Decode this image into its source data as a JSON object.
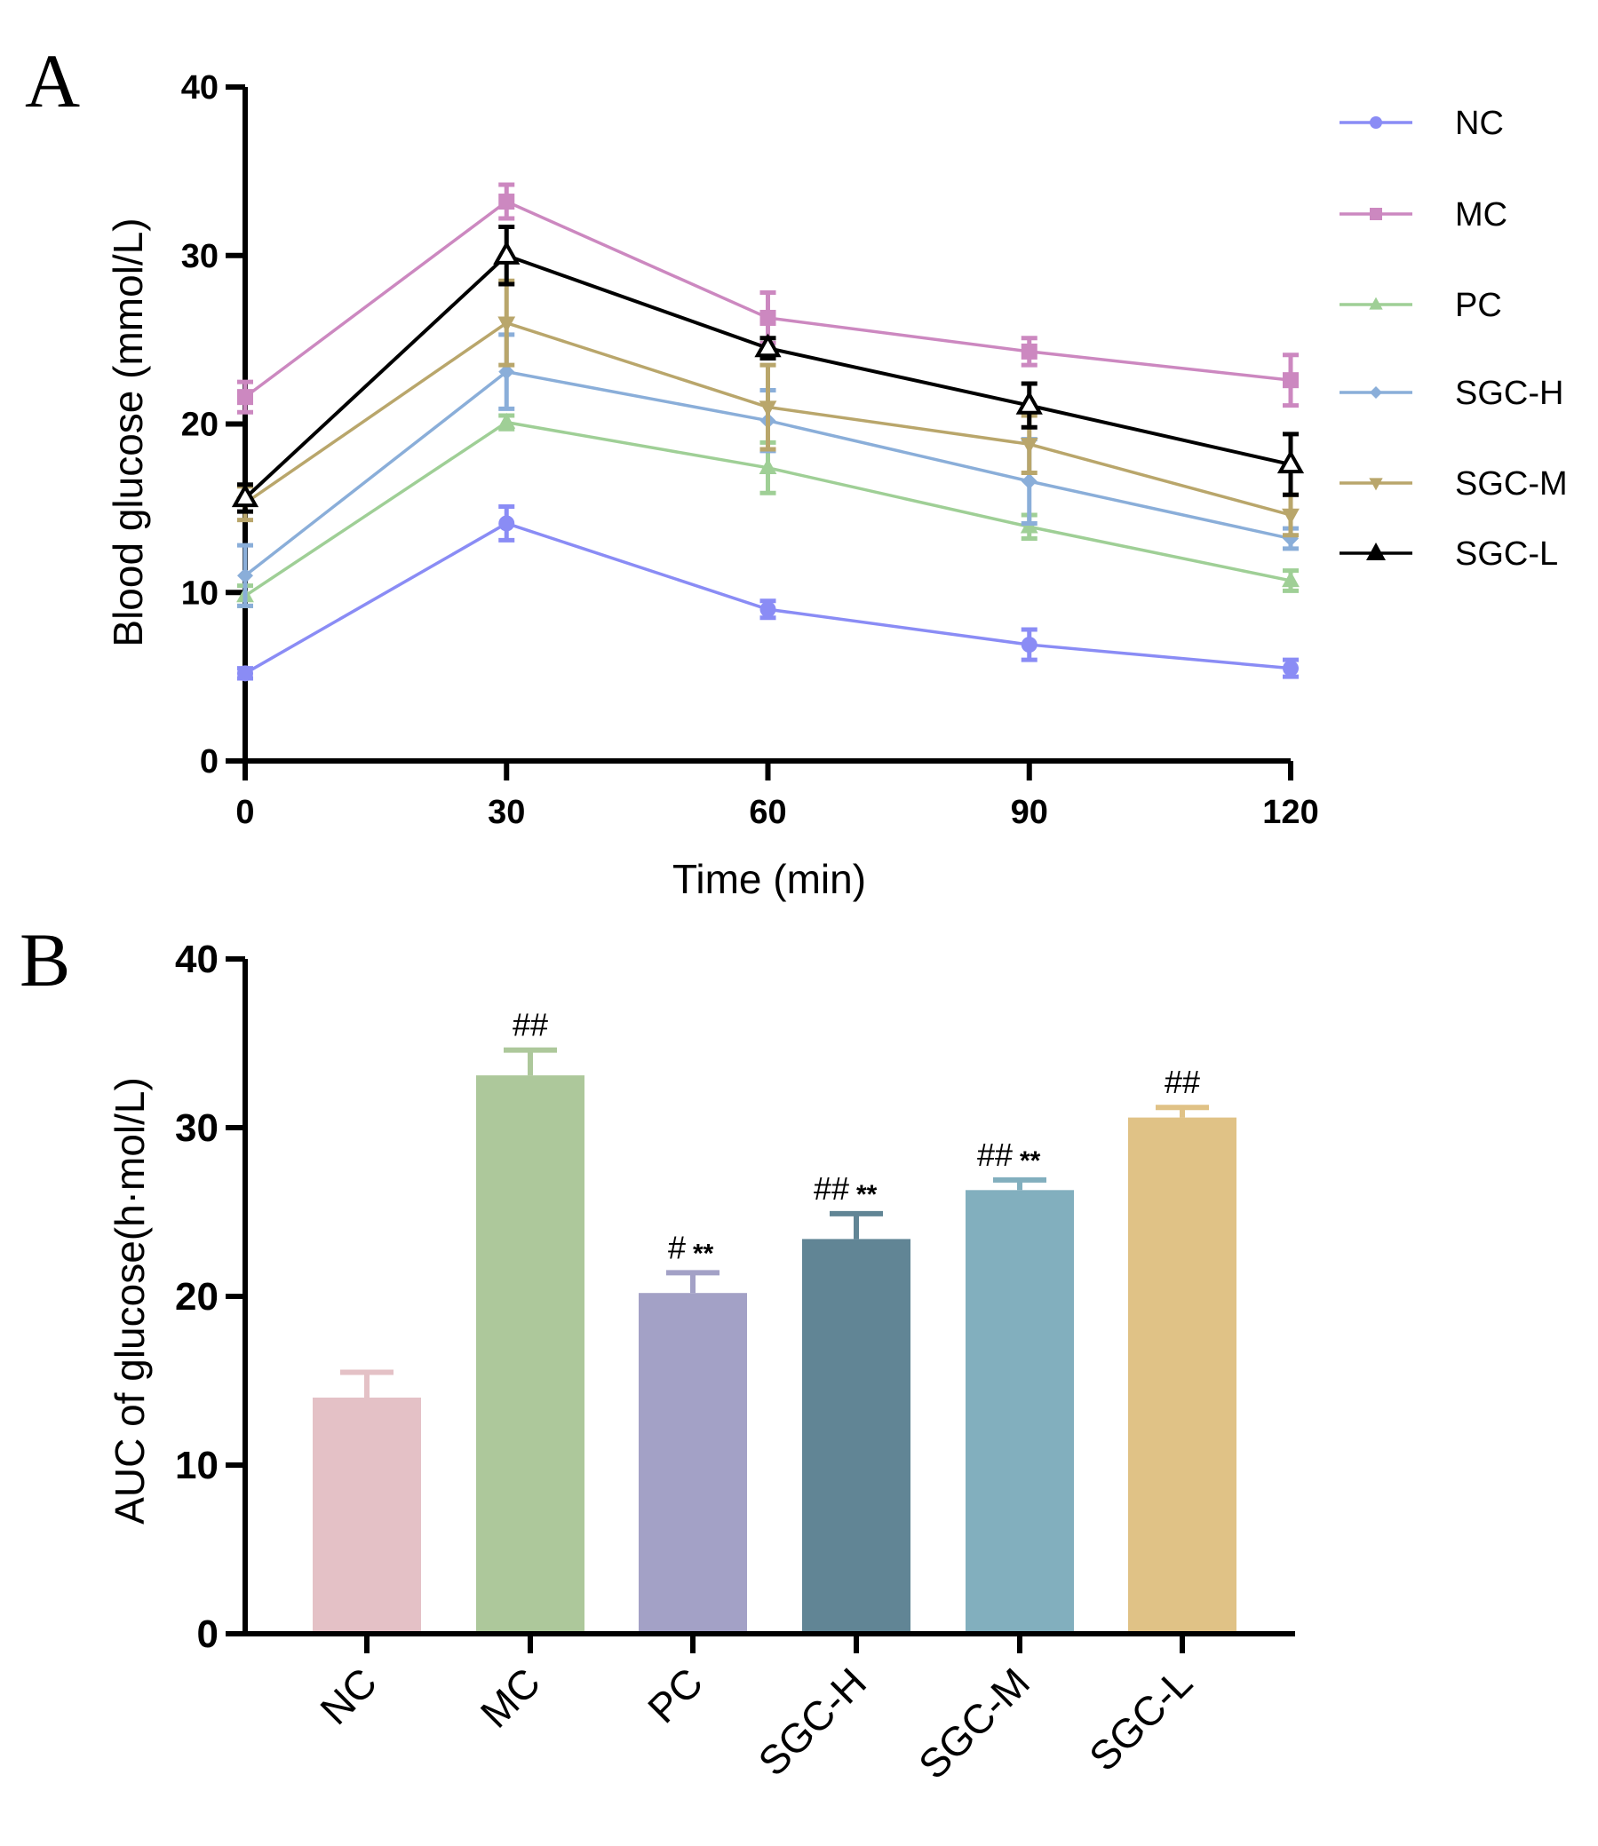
{
  "panels": {
    "a_letter": "A",
    "b_letter": "B"
  },
  "chart_data": [
    {
      "type": "line",
      "panel": "A",
      "title": "",
      "xlabel": "Time (min)",
      "ylabel": "Blood glucose (mmol/L)",
      "x": [
        0,
        30,
        60,
        90,
        120
      ],
      "xticks": [
        "0",
        "30",
        "60",
        "90",
        "120"
      ],
      "yticks": [
        "0",
        "10",
        "20",
        "30",
        "40"
      ],
      "xlim": [
        0,
        120
      ],
      "ylim": [
        0,
        40
      ],
      "grid": false,
      "legend_position": "right",
      "series": [
        {
          "name": "NC",
          "color": "#8a8cf5",
          "marker": "circle",
          "values": [
            5.2,
            14.1,
            9.0,
            6.9,
            5.5
          ],
          "err": [
            0.3,
            1.0,
            0.5,
            0.9,
            0.5
          ]
        },
        {
          "name": "MC",
          "color": "#cc88c0",
          "marker": "square",
          "values": [
            21.6,
            33.2,
            26.3,
            24.3,
            22.6
          ],
          "err": [
            0.9,
            1.0,
            1.5,
            0.8,
            1.5
          ]
        },
        {
          "name": "PC",
          "color": "#9fcf96",
          "marker": "triangle-up",
          "values": [
            9.8,
            20.1,
            17.4,
            13.9,
            10.7
          ],
          "err": [
            0.6,
            0.4,
            1.5,
            0.7,
            0.6
          ]
        },
        {
          "name": "SGC-H",
          "color": "#8aaed9",
          "marker": "diamond",
          "values": [
            11.0,
            23.1,
            20.2,
            16.6,
            13.2
          ],
          "err": [
            1.8,
            2.2,
            1.8,
            2.5,
            0.6
          ]
        },
        {
          "name": "SGC-M",
          "color": "#b9a66b",
          "marker": "triangle-down",
          "values": [
            15.3,
            26.0,
            21.0,
            18.8,
            14.6
          ],
          "err": [
            1.0,
            2.5,
            2.5,
            1.7,
            1.2
          ]
        },
        {
          "name": "SGC-L",
          "color": "#000000",
          "marker": "triangle-up-open",
          "values": [
            15.6,
            30.0,
            24.5,
            21.1,
            17.6
          ],
          "err": [
            0.8,
            1.7,
            0.6,
            1.3,
            1.8
          ]
        }
      ]
    },
    {
      "type": "bar",
      "panel": "B",
      "title": "",
      "xlabel": "",
      "ylabel": "AUC of glucose(h·mol/L)",
      "categories": [
        "NC",
        "MC",
        "PC",
        "SGC-H",
        "SGC-M",
        "SGC-L"
      ],
      "values": [
        14.0,
        33.1,
        20.2,
        23.4,
        26.3,
        30.6
      ],
      "err": [
        1.5,
        1.5,
        1.2,
        1.5,
        0.6,
        0.6
      ],
      "colors": [
        "#e4c1c6",
        "#adc89b",
        "#a3a1c6",
        "#618595",
        "#82afbe",
        "#e0c286"
      ],
      "annotations_hash": [
        "",
        "##",
        "#",
        "##",
        "##",
        "##"
      ],
      "annotations_star": [
        "",
        "",
        "**",
        "**",
        "**",
        ""
      ],
      "yticks": [
        "0",
        "10",
        "20",
        "30",
        "40"
      ],
      "ylim": [
        0,
        40
      ],
      "grid": false
    }
  ]
}
